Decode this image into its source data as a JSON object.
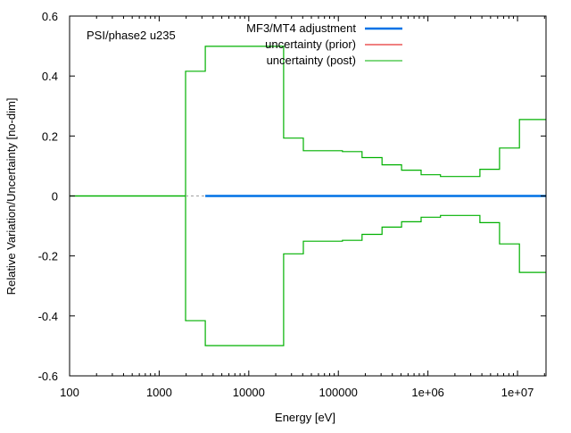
{
  "chart_data": {
    "type": "line",
    "title": "",
    "annotation": "PSI/phase2 u235",
    "xlabel": "Energy [eV]",
    "ylabel": "Relative Variation/Uncertainty [no-dim]",
    "xscale": "log",
    "xlim": [
      100,
      20800000
    ],
    "ylim": [
      -0.6,
      0.6
    ],
    "xticks": [
      {
        "value": 100,
        "label": "100"
      },
      {
        "value": 1000,
        "label": "1000"
      },
      {
        "value": 10000,
        "label": "10000"
      },
      {
        "value": 100000,
        "label": "100000"
      },
      {
        "value": 1000000,
        "label": "1e+06"
      },
      {
        "value": 10000000,
        "label": "1e+07"
      }
    ],
    "yticks": [
      {
        "value": 0.6,
        "label": "0.6"
      },
      {
        "value": 0.4,
        "label": "0.4"
      },
      {
        "value": 0.2,
        "label": "0.2"
      },
      {
        "value": 0,
        "label": "0"
      },
      {
        "value": -0.2,
        "label": "-0.2"
      },
      {
        "value": -0.4,
        "label": "-0.4"
      },
      {
        "value": -0.6,
        "label": "-0.6"
      }
    ],
    "grid": false,
    "legend_position": "top-right",
    "series": [
      {
        "name": "MF3/MT4 adjustment",
        "color": "#0072e6",
        "style": "step",
        "x": [
          3270,
          20800000
        ],
        "y": [
          0,
          0
        ]
      },
      {
        "name": "uncertainty (prior)",
        "color": "#e00000",
        "style": "step",
        "x": [],
        "y": []
      },
      {
        "name": "uncertainty (post)",
        "color": "#00b000",
        "style": "step-band",
        "edges": [
          100,
          1970,
          3270,
          24500,
          40700,
          111000,
          184000,
          307000,
          508000,
          840000,
          1380000,
          3800000,
          6300000,
          10500000,
          20800000
        ],
        "values": [
          0,
          0.416,
          0.499,
          0.193,
          0.151,
          0.148,
          0.128,
          0.104,
          0.086,
          0.071,
          0.065,
          0.089,
          0.16,
          0.255
        ]
      }
    ],
    "gap_segment": {
      "x": [
        1970,
        3270
      ],
      "y": [
        0,
        0
      ],
      "color": "#a0a0a0",
      "style": "dashed"
    }
  }
}
